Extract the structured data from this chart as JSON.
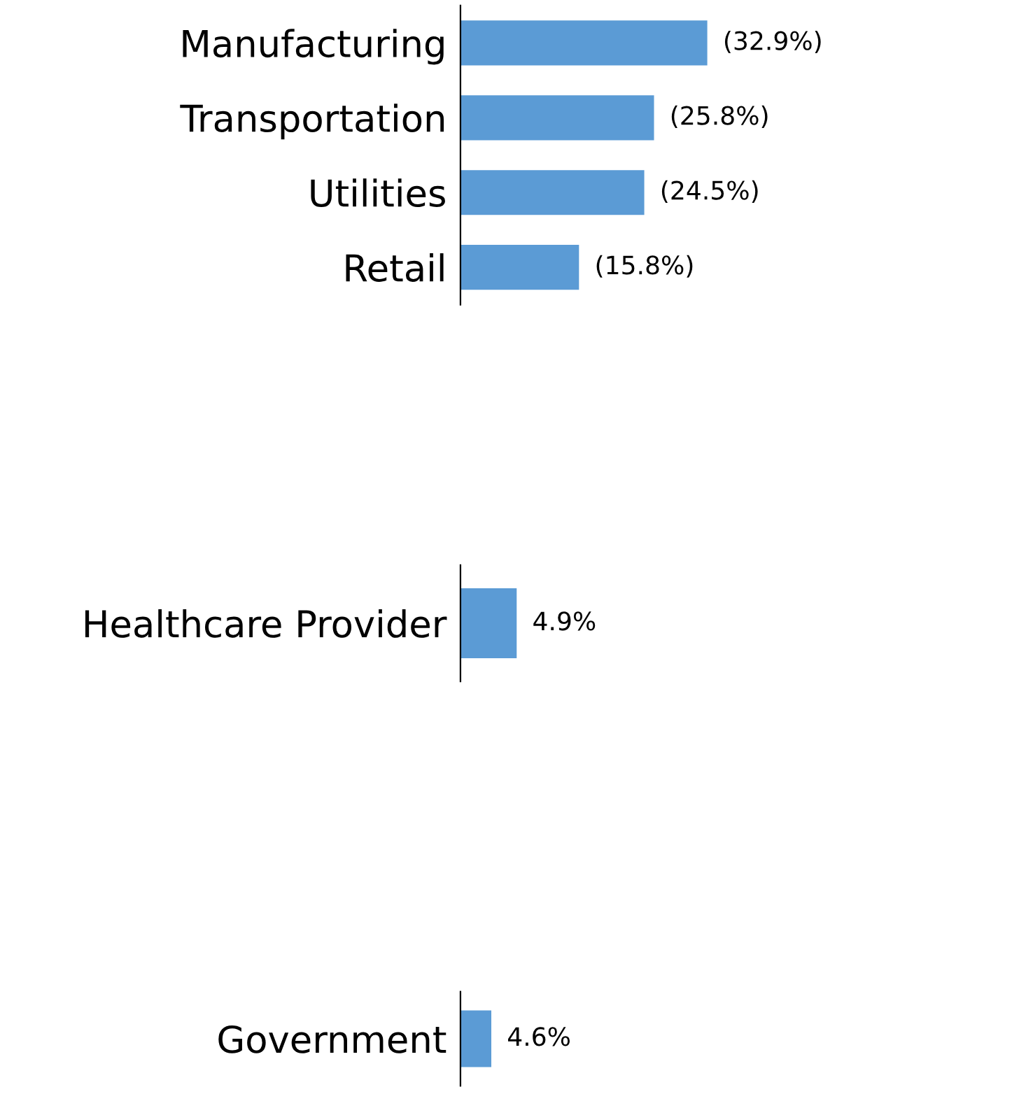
{
  "chart_data": [
    {
      "type": "bar",
      "orientation": "horizontal",
      "categories": [
        "Manufacturing",
        "Transportation",
        "Utilities",
        "Retail"
      ],
      "values": [
        32.9,
        25.8,
        24.5,
        15.8
      ],
      "value_labels": [
        "(32.9%)",
        "(25.8%)",
        "(24.5%)",
        "(15.8%)"
      ],
      "color": "#5b9bd5",
      "tick_labels": "y",
      "grid": false,
      "legend": false
    },
    {
      "type": "bar",
      "orientation": "horizontal",
      "categories": [
        "Healthcare Provider"
      ],
      "values": [
        4.9
      ],
      "value_labels": [
        "4.9%"
      ],
      "color": "#5b9bd5",
      "tick_labels": "y",
      "grid": false,
      "legend": false
    },
    {
      "type": "bar",
      "orientation": "horizontal",
      "categories": [
        "Government"
      ],
      "values": [
        4.6
      ],
      "value_labels": [
        "4.6%"
      ],
      "color": "#5b9bd5",
      "tick_labels": "y",
      "grid": false,
      "legend": false
    }
  ]
}
